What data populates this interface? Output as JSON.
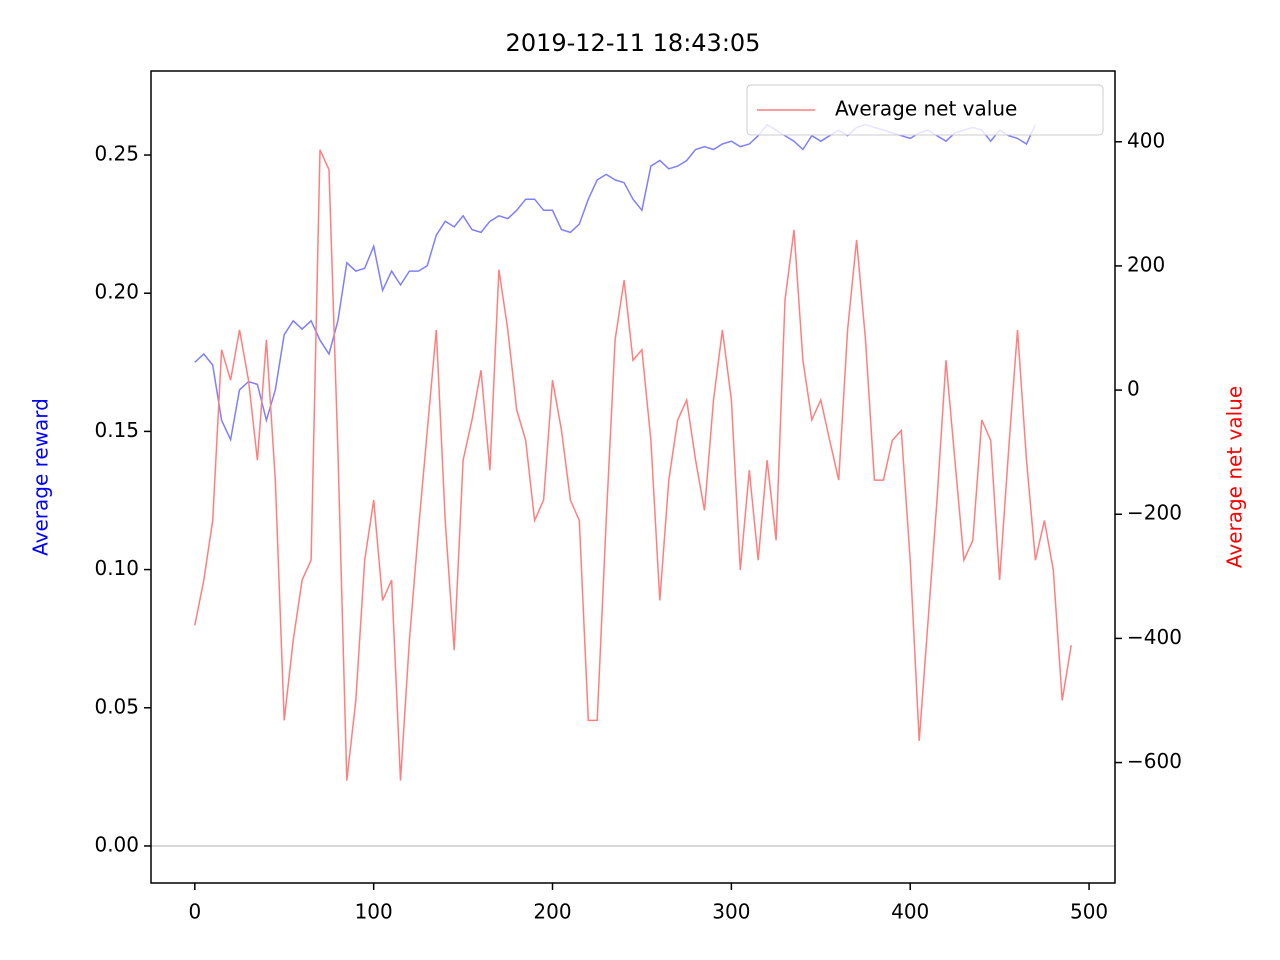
{
  "chart_data": {
    "type": "line",
    "title": "2019-12-11 18:43:05",
    "ylabel": "Average reward",
    "ylabel_color": "#0000ff",
    "y2label": "Average net value",
    "y2label_color": "#ff0000",
    "x": [
      0,
      5,
      10,
      15,
      20,
      25,
      30,
      35,
      40,
      45,
      50,
      55,
      60,
      65,
      70,
      75,
      80,
      85,
      90,
      95,
      100,
      105,
      110,
      115,
      120,
      125,
      130,
      135,
      140,
      145,
      150,
      155,
      160,
      165,
      170,
      175,
      180,
      185,
      190,
      195,
      200,
      205,
      210,
      215,
      220,
      225,
      230,
      235,
      240,
      245,
      250,
      255,
      260,
      265,
      270,
      275,
      280,
      285,
      290,
      295,
      300,
      305,
      310,
      315,
      320,
      325,
      330,
      335,
      340,
      345,
      350,
      355,
      360,
      365,
      370,
      375,
      380,
      385,
      390,
      395,
      400,
      405,
      410,
      415,
      420,
      425,
      430,
      435,
      440,
      445,
      450,
      455,
      460,
      465,
      470,
      475,
      480,
      485,
      490
    ],
    "series": [
      {
        "color": "#7f7fff",
        "axis": "y",
        "in_legend": false,
        "values": [
          0.175,
          0.178,
          0.174,
          0.154,
          0.147,
          0.165,
          0.168,
          0.167,
          0.154,
          0.165,
          0.185,
          0.19,
          0.187,
          0.19,
          0.183,
          0.178,
          0.19,
          0.211,
          0.208,
          0.209,
          0.217,
          0.201,
          0.208,
          0.203,
          0.208,
          0.208,
          0.21,
          0.221,
          0.226,
          0.224,
          0.228,
          0.223,
          0.222,
          0.226,
          0.228,
          0.227,
          0.23,
          0.234,
          0.234,
          0.23,
          0.23,
          0.223,
          0.222,
          0.225,
          0.234,
          0.241,
          0.243,
          0.241,
          0.24,
          0.234,
          0.23,
          0.246,
          0.248,
          0.245,
          0.246,
          0.248,
          0.252,
          0.253,
          0.252,
          0.254,
          0.255,
          0.253,
          0.254,
          0.257,
          0.261,
          0.259,
          0.257,
          0.255,
          0.252,
          0.257,
          0.255,
          0.257,
          0.259,
          0.257,
          0.26,
          0.261,
          0.26,
          0.259,
          0.258,
          0.257,
          0.256,
          0.258,
          0.259,
          0.257,
          0.255,
          0.258,
          0.259,
          0.26,
          0.259,
          0.255,
          0.259,
          0.257,
          0.256,
          0.254,
          0.261,
          null,
          null,
          null,
          null
        ]
      },
      {
        "name": "Average net value",
        "color": "#ff7f7f",
        "axis": "y2",
        "in_legend": true,
        "values": [
          -379,
          -306,
          -210,
          65,
          16,
          97,
          16,
          -113,
          81,
          -145,
          -532,
          -403,
          -306,
          -274,
          387,
          355,
          -97,
          -629,
          -500,
          -274,
          -177,
          -339,
          -306,
          -629,
          -403,
          -226,
          -65,
          97,
          -210,
          -419,
          -113,
          -48,
          32,
          -129,
          194,
          97,
          -32,
          -81,
          -210,
          -177,
          16,
          -65,
          -177,
          -210,
          -532,
          -532,
          -210,
          81,
          177,
          48,
          65,
          -81,
          -339,
          -145,
          -48,
          -16,
          -113,
          -194,
          -16,
          97,
          -16,
          -290,
          -129,
          -274,
          -113,
          -242,
          145,
          258,
          48,
          -48,
          -16,
          -81,
          -145,
          97,
          242,
          81,
          -145,
          -145,
          -81,
          -65,
          -274,
          -565,
          -371,
          -177,
          48,
          -113,
          -274,
          -242,
          -48,
          -81,
          -306,
          -97,
          97,
          -113,
          -274,
          -210,
          -290,
          -500,
          -411
        ]
      }
    ],
    "xlim": [
      -24.5,
      514.5
    ],
    "xticks": [
      0,
      100,
      200,
      300,
      400,
      500
    ],
    "ylim": [
      -0.0134,
      0.2804
    ],
    "yticks": [
      {
        "value": 0,
        "label": "0.00"
      },
      {
        "value": 0.05,
        "label": "0.05"
      },
      {
        "value": 0.1,
        "label": "0.10"
      },
      {
        "value": 0.15,
        "label": "0.15"
      },
      {
        "value": 0.2,
        "label": "0.20"
      },
      {
        "value": 0.25,
        "label": "0.25"
      }
    ],
    "y2lim": [
      -794,
      514
    ],
    "y2ticks": [
      {
        "value": -600,
        "label": "−600"
      },
      {
        "value": -400,
        "label": "−400"
      },
      {
        "value": -200,
        "label": "−200"
      },
      0,
      200,
      400
    ],
    "axhline": 0,
    "legend": "upper right"
  }
}
